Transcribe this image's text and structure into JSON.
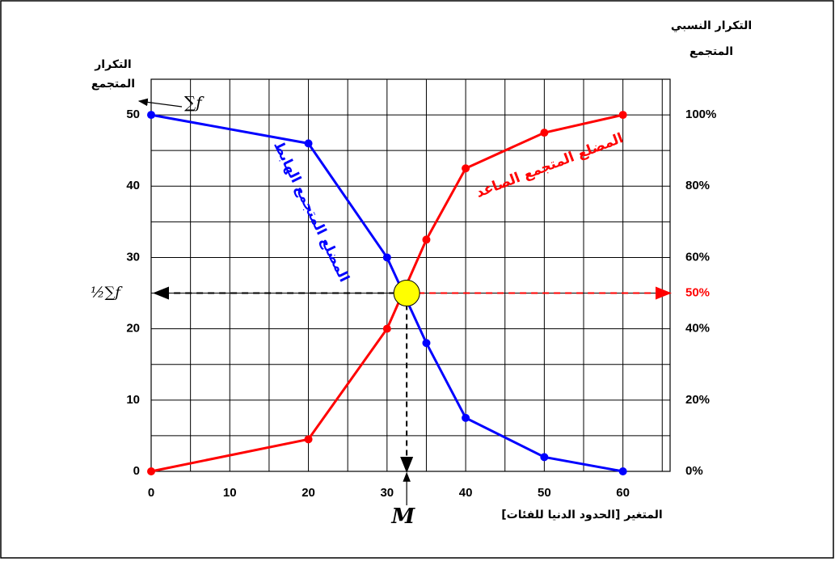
{
  "chart_data": {
    "type": "line",
    "y_axis_label": [
      "التكرار",
      "المتجمع"
    ],
    "y2_axis_label": [
      "التكرار النسبي",
      "المتجمع"
    ],
    "x_axis_label": "المتغير [الحدود الدنيا للفئات]",
    "total_label": "∑f",
    "half_total_label": "½∑f",
    "x": [
      0,
      20,
      30,
      35,
      40,
      50,
      60
    ],
    "series": [
      {
        "name": "المضلع المتجمع الهابط",
        "color": "#0000ff",
        "values": [
          50,
          46,
          30,
          18,
          7.5,
          2,
          0
        ]
      },
      {
        "name": "المضلع المتجمع الصاعد",
        "color": "#ff0000",
        "values": [
          0,
          4.5,
          20,
          32.5,
          42.5,
          47.5,
          50
        ]
      }
    ],
    "median": {
      "x": 32.5,
      "y": 25,
      "label": "M",
      "color": "#ffff00"
    },
    "percent_marker": {
      "value": 50,
      "label": "50%",
      "color": "#ff0000"
    },
    "xlim": [
      0,
      66
    ],
    "ylim": [
      0,
      55
    ],
    "y2lim": [
      0,
      110
    ],
    "xticks": [
      0,
      10,
      20,
      30,
      40,
      50,
      60
    ],
    "yticks": [
      0,
      10,
      20,
      30,
      40,
      50
    ],
    "y2ticks": [
      {
        "value": 0,
        "label": "0%"
      },
      {
        "value": 20,
        "label": "20%"
      },
      {
        "value": 40,
        "label": "40%"
      },
      {
        "value": 60,
        "label": "60%"
      },
      {
        "value": 80,
        "label": "80%"
      },
      {
        "value": 100,
        "label": "100%"
      }
    ],
    "xgrid": [
      0,
      5,
      10,
      15,
      20,
      25,
      30,
      35,
      40,
      45,
      50,
      55,
      60,
      65
    ],
    "ygrid": [
      0,
      5,
      10,
      15,
      20,
      25,
      30,
      35,
      40,
      45,
      50
    ],
    "grid": true
  }
}
